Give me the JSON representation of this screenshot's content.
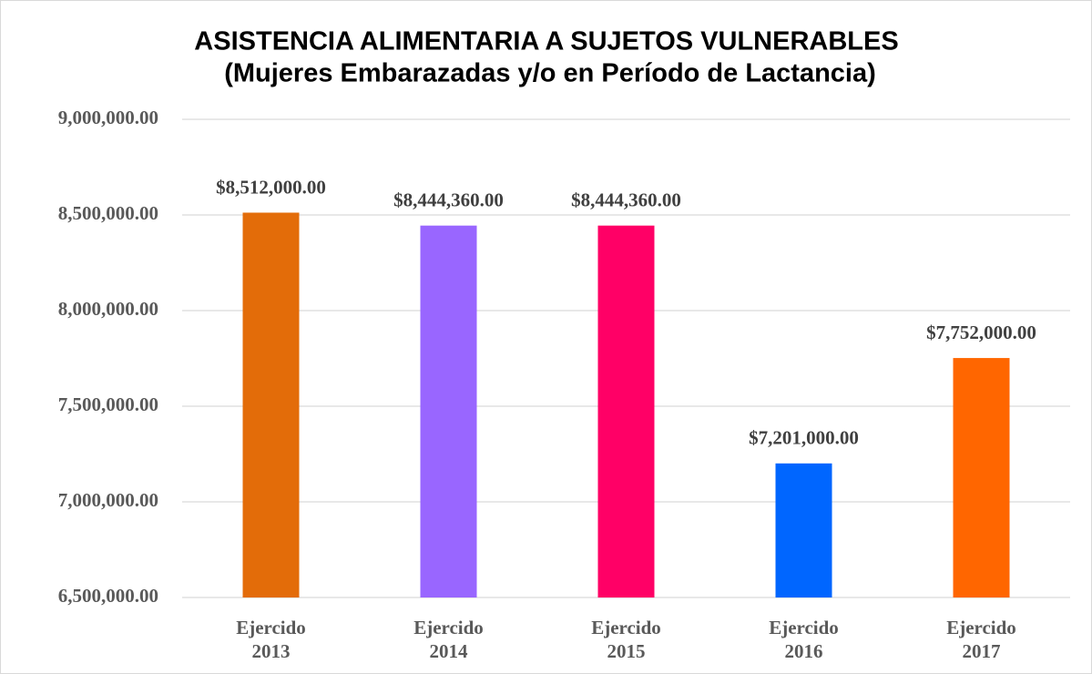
{
  "chart_data": {
    "type": "bar",
    "title": "ASISTENCIA ALIMENTARIA A SUJETOS VULNERABLES",
    "subtitle": "(Mujeres Embarazadas y/o en Período de Lactancia)",
    "categories": [
      "Ejercido 2013",
      "Ejercido 2014",
      "Ejercido 2015",
      "Ejercido 2016",
      "Ejercido 2017"
    ],
    "values": [
      8512000,
      8444360,
      8444360,
      7201000,
      7752000
    ],
    "value_labels": [
      "$8,512,000.00",
      "$8,444,360.00",
      "$8,444,360.00",
      "$7,201,000.00",
      "$7,752,000.00"
    ],
    "colors": [
      "#e36c09",
      "#9966ff",
      "#ff0066",
      "#0066ff",
      "#ff6600"
    ],
    "ylim": [
      6500000,
      9000000
    ],
    "yticks": [
      {
        "value": 6500000,
        "label": "6,500,000.00"
      },
      {
        "value": 7000000,
        "label": "7,000,000.00"
      },
      {
        "value": 7500000,
        "label": "7,500,000.00"
      },
      {
        "value": 8000000,
        "label": "8,000,000.00"
      },
      {
        "value": 8500000,
        "label": "8,500,000.00"
      },
      {
        "value": 9000000,
        "label": "9,000,000.00"
      }
    ],
    "grid": true
  }
}
